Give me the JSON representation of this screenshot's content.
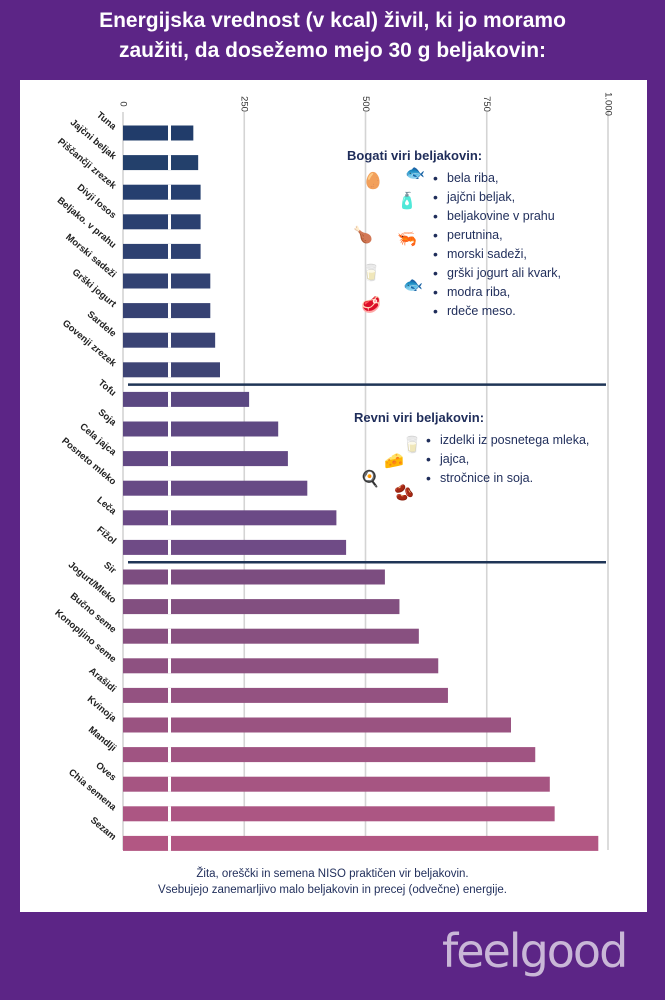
{
  "title_lines": [
    "Energijska vrednost (v kcal) živil, ki jo moramo",
    "zaužiti, da dosežemo mejo 30 g beljakovin:"
  ],
  "rich_box": {
    "heading": "Bogati viri beljakovin:",
    "items": [
      "bela riba,",
      "jajčni beljak,",
      "beljakovine v prahu",
      "perutnina,",
      "morski sadeži,",
      "grški jogurt ali kvark,",
      "modra riba,",
      "rdeče meso."
    ]
  },
  "poor_box": {
    "heading": "Revni viri beljakovin:",
    "items": [
      "izdelki iz posnetega mleka,",
      "jajca,",
      "stročnice in soja."
    ]
  },
  "footnote_lines": [
    "Žita, oreščki in semena NISO praktičen vir beljakovin.",
    "Vsebujejo zanemarljivo malo beljakovin in precej (odvečne) energije."
  ],
  "logo": "feelgood",
  "chart_data": {
    "type": "bar",
    "orientation": "horizontal",
    "title": "Energijska vrednost (v kcal) živil, ki jo moramo zaužiti, da dosežemo mejo 30 g beljakovin:",
    "ticks": [
      0,
      250,
      500,
      750,
      1000
    ],
    "tick_labels": [
      "0",
      "250",
      "500",
      "750",
      "1.000"
    ],
    "xlim": [
      0,
      1000
    ],
    "grid": true,
    "categories": [
      "Tuna",
      "Jajčni beljak",
      "Piščančji zrezek",
      "Divji losos",
      "Beljako. v prahu",
      "Morski sadeži",
      "Grški jogurt",
      "Sardele",
      "Govenji zrezek",
      "Tofu",
      "Soja",
      "Cela jajca",
      "Posneto mleko",
      "Leča",
      "Fižol",
      "Sir",
      "Jogurt/Mleko",
      "Bučno seme",
      "Konopljino seme",
      "Arašidi",
      "Kvinoja",
      "Mandlji",
      "Oves",
      "Chia semena",
      "Sezam"
    ],
    "values": [
      145,
      155,
      160,
      160,
      160,
      180,
      180,
      190,
      200,
      260,
      320,
      340,
      380,
      440,
      460,
      540,
      570,
      610,
      650,
      670,
      800,
      850,
      880,
      890,
      980
    ],
    "groups": [
      {
        "name": "Bogati viri beljakovin",
        "count": 9,
        "color": "#253f6b"
      },
      {
        "name": "Revni viri beljakovin",
        "count": 6,
        "color": "#6c4b86"
      },
      {
        "name": "Žita, oreščki in semena",
        "count": 10,
        "color": "#a35783"
      }
    ],
    "colors": [
      "#213c6a",
      "#23406b",
      "#263f6f",
      "#2a4070",
      "#2e4171",
      "#324272",
      "#364273",
      "#3a4374",
      "#3e4475",
      "#5b4882",
      "#5f4983",
      "#634984",
      "#674a85",
      "#6b4a86",
      "#6f4b86",
      "#7c4d80",
      "#824f80",
      "#885080",
      "#8e5181",
      "#945281",
      "#9a5381",
      "#a05482",
      "#a65582",
      "#ac5683",
      "#b25783"
    ]
  }
}
